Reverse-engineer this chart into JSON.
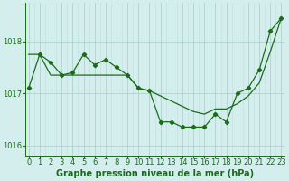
{
  "title": "Graphe pression niveau de la mer (hPa)",
  "bg_color": "#d4eeee",
  "grid_color_major": "#aacccc",
  "grid_color_minor": "#c0dddd",
  "line_color": "#1a6b1a",
  "x_values": [
    0,
    1,
    2,
    3,
    4,
    5,
    6,
    7,
    8,
    9,
    10,
    11,
    12,
    13,
    14,
    15,
    16,
    17,
    18,
    19,
    20,
    21,
    22,
    23
  ],
  "y_values": [
    1017.1,
    1017.75,
    1017.6,
    1017.35,
    1017.4,
    1017.75,
    1017.55,
    1017.65,
    1017.5,
    1017.35,
    1017.1,
    1017.05,
    1016.45,
    1016.45,
    1016.35,
    1016.35,
    1016.35,
    1016.6,
    1016.45,
    1017.0,
    1017.1,
    1017.45,
    1018.2,
    1018.45
  ],
  "y2_values": [
    1017.75,
    1017.75,
    1017.35,
    1017.35,
    1017.35,
    1017.35,
    1017.35,
    1017.35,
    1017.35,
    1017.35,
    1017.1,
    1017.05,
    1016.95,
    1016.85,
    1016.75,
    1016.65,
    1016.6,
    1016.7,
    1016.7,
    1016.8,
    1016.95,
    1017.2,
    1017.8,
    1018.45
  ],
  "ylim_min": 1015.8,
  "ylim_max": 1018.75,
  "yticks": [
    1016,
    1017,
    1018
  ],
  "tick_fontsize": 6,
  "title_fontsize": 7
}
